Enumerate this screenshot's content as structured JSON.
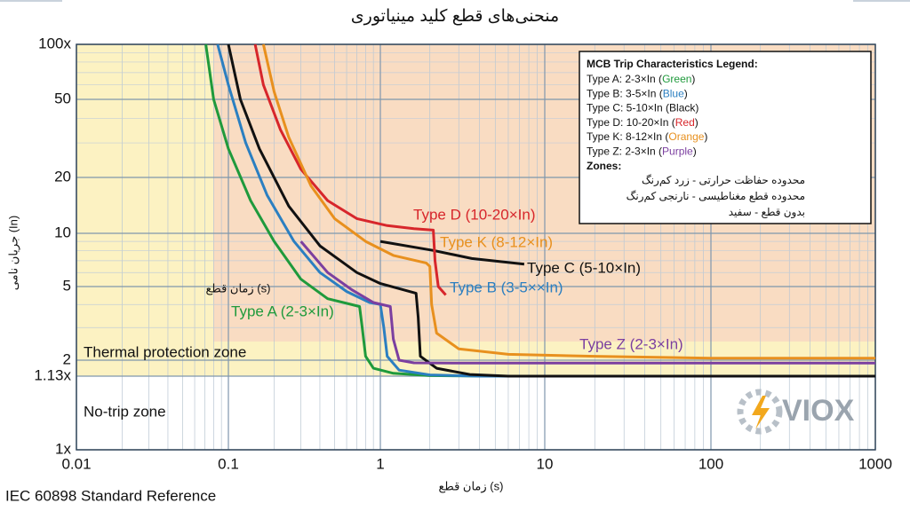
{
  "title": "منحنی‌های قطع کلید مینیاتوری",
  "footer": "IEC 60898 Standard Reference",
  "watermark": "VIOX",
  "chart_data": {
    "type": "line",
    "xscale": "log",
    "yscale": "log",
    "x_label": "زمان قطع (s)",
    "y_label": "جریان نامی (In)",
    "annotation": "زمان قطع (s)",
    "xlim": [
      0.01,
      1000
    ],
    "xticks": [
      0.01,
      0.1,
      1,
      10,
      100,
      1000
    ],
    "ylim": [
      1,
      100
    ],
    "yticks": [
      {
        "value": 1,
        "label": "1x"
      },
      {
        "value": 1.13,
        "label": "1.13x"
      },
      2,
      5,
      10,
      20,
      50,
      {
        "value": 100,
        "label": "100x"
      }
    ],
    "grid": true,
    "zones": [
      {
        "name": "Thermal protection zone",
        "color": "#fcf2c2"
      },
      {
        "name": "No-trip zone",
        "color": "#ffffff"
      }
    ],
    "magnetic_zone_color": "#f9dcc2",
    "series": [
      {
        "name": "Type A (2-3×In)",
        "color": "#1f9a3c",
        "x": [
          0.071,
          0.08,
          0.1,
          0.14,
          0.2,
          0.3,
          0.45,
          0.73,
          0.76,
          0.8,
          0.9,
          1.2,
          2,
          5,
          1000
        ],
        "values": [
          100,
          50,
          28,
          15,
          9,
          5.5,
          4.3,
          3.9,
          3,
          2.1,
          1.5,
          1.25,
          1.15,
          1.13,
          1.13
        ]
      },
      {
        "name": "Type B (3-5××In)",
        "color": "#2b7fc1",
        "x": [
          0.085,
          0.1,
          0.13,
          0.18,
          0.27,
          0.4,
          0.6,
          0.85,
          1.0,
          1.05,
          1.1,
          1.3,
          2,
          4,
          1000
        ],
        "values": [
          100,
          60,
          30,
          16,
          9,
          6,
          4.7,
          4.1,
          4,
          3,
          2.1,
          1.4,
          1.18,
          1.13,
          1.13
        ]
      },
      {
        "name": "Type C (5-10×In)",
        "color": "#111111",
        "x": [
          0.1,
          0.12,
          0.16,
          0.25,
          0.4,
          0.7,
          1.0,
          1.65,
          1.7,
          1.75,
          2.2,
          3.5,
          6,
          1000,
          null,
          1.0,
          2.1,
          3.6,
          7.5
        ],
        "values": [
          100,
          50,
          28,
          14,
          8.5,
          6,
          5.2,
          4.6,
          3.4,
          2.1,
          1.5,
          1.2,
          1.13,
          1.13,
          null,
          9,
          8,
          7.2,
          6.7
        ]
      },
      {
        "name": "Type D (10-20×In)",
        "color": "#d7262b",
        "x": [
          0.15,
          0.17,
          0.22,
          0.3,
          0.45,
          0.7,
          1.1,
          1.6,
          2.1,
          2.15,
          2.25,
          2.5
        ],
        "values": [
          100,
          60,
          35,
          22,
          15,
          12,
          11,
          10.6,
          10.4,
          7,
          5,
          4.5
        ]
      },
      {
        "name": "Type K (8-12×In)",
        "color": "#e8901e",
        "x": [
          0.17,
          0.2,
          0.25,
          0.35,
          0.5,
          0.8,
          1.2,
          1.9,
          2.0,
          2.05,
          2.2,
          3,
          6,
          20,
          100,
          1000
        ],
        "values": [
          100,
          55,
          32,
          18,
          12,
          9,
          7.5,
          6.8,
          6.5,
          4,
          2.8,
          2.3,
          2.15,
          2.1,
          2.05,
          2.05
        ]
      },
      {
        "name": "Type Z (2-3×In)",
        "color": "#7b3fa0",
        "x": [
          0.3,
          0.45,
          0.65,
          0.9,
          1.15,
          1.2,
          1.3,
          1.6,
          3,
          1000
        ],
        "values": [
          9,
          6,
          4.8,
          4.1,
          3.9,
          2.6,
          2.0,
          1.82,
          1.8,
          1.8
        ]
      }
    ],
    "legend": {
      "title": "MCB Trip Characteristics Legend:",
      "entries": [
        {
          "text": "Type A: 2-3×In (",
          "color_word": "Green",
          "color": "#1f9a3c",
          "close": ")"
        },
        {
          "text": "Type B: 3-5×In (",
          "color_word": "Blue",
          "color": "#2b7fc1",
          "close": ")"
        },
        {
          "text": "Type C: 5-10×In (",
          "color_word": "Black",
          "color": "#111111",
          "close": ")"
        },
        {
          "text": "Type D: 10-20×In (",
          "color_word": "Red",
          "color": "#d7262b",
          "close": ")"
        },
        {
          "text": "Type K: 8-12×In (",
          "color_word": "Orange",
          "color": "#e8901e",
          "close": ")"
        },
        {
          "text": "Type Z: 2-3×In (",
          "color_word": "Purple",
          "color": "#7b3fa0",
          "close": ")"
        }
      ],
      "zones_title": "Zones:",
      "zones": [
        "محدوده حفاظت حرارتی - زرد کم‌رنگ",
        "محدوده قطع مغناطیسی - نارنجی کم‌رنگ",
        "بدون قطع - سفید"
      ]
    }
  }
}
